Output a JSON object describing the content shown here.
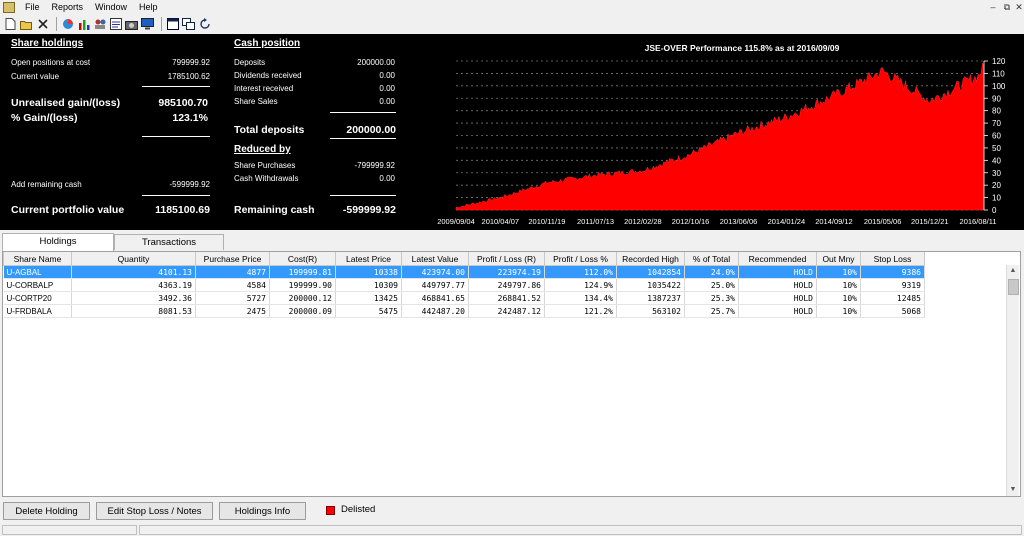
{
  "menu": {
    "items": [
      "File",
      "Reports",
      "Window",
      "Help"
    ]
  },
  "window_controls": {
    "minimize": "–",
    "restore": "⧉",
    "close": "✕"
  },
  "toolbar": {
    "icons": [
      "new-icon",
      "open-icon",
      "close-icon",
      "pie-chart-icon",
      "bar-chart-icon",
      "people-icon",
      "report-icon",
      "camera-icon",
      "monitor-icon",
      "window-icon",
      "cascade-icon",
      "refresh-icon"
    ]
  },
  "share_holdings": {
    "heading": "Share holdings",
    "open_positions_label": "Open positions at cost",
    "open_positions_value": "799999.92",
    "current_value_label": "Current value",
    "current_value_value": "1785100.62",
    "unrealised_label": "Unrealised gain/(loss)",
    "unrealised_value": "985100.70",
    "gain_label": "% Gain/(loss)",
    "gain_value": "123.1%",
    "add_cash_label": "Add remaining cash",
    "add_cash_value": "-599999.92",
    "portfolio_label": "Current portfolio value",
    "portfolio_value": "1185100.69"
  },
  "cash_position": {
    "heading": "Cash position",
    "deposits_label": "Deposits",
    "deposits_value": "200000.00",
    "dividends_label": "Dividends received",
    "dividends_value": "0.00",
    "interest_label": "Interest received",
    "interest_value": "0.00",
    "share_sales_label": "Share Sales",
    "share_sales_value": "0.00",
    "total_deposits_label": "Total deposits",
    "total_deposits_value": "200000.00",
    "reduced_heading": "Reduced by",
    "share_purchases_label": "Share Purchases",
    "share_purchases_value": "-799999.92",
    "cash_withdrawals_label": "Cash Withdrawals",
    "cash_withdrawals_value": "0.00",
    "remaining_cash_label": "Remaining cash",
    "remaining_cash_value": "-599999.92"
  },
  "chart_data": {
    "type": "area",
    "title": "JSE-OVER Performance 115.8% as at 2016/09/09",
    "x_ticks": [
      "2009/09/04",
      "2010/04/07",
      "2010/11/19",
      "2011/07/13",
      "2012/02/28",
      "2012/10/16",
      "2013/06/06",
      "2014/01/24",
      "2014/09/12",
      "2015/05/06",
      "2015/12/21",
      "2016/08/11"
    ],
    "y_ticks": [
      0,
      10,
      20,
      30,
      40,
      50,
      60,
      70,
      80,
      90,
      100,
      110,
      120
    ],
    "ylim": [
      0,
      120
    ],
    "grid": true,
    "x": [
      "2009/09/04",
      "2010/04/07",
      "2010/11/19",
      "2011/07/13",
      "2012/02/28",
      "2012/10/16",
      "2013/06/06",
      "2014/01/24",
      "2014/09/12",
      "2015/05/06",
      "2015/12/21",
      "2016/08/11",
      "2016/09/09"
    ],
    "y": [
      2,
      10,
      22,
      28,
      32,
      45,
      62,
      75,
      92,
      112,
      88,
      108,
      116
    ],
    "fill_color": "#ff0000",
    "background": "#000000"
  },
  "tabs": {
    "holdings": "Holdings",
    "transactions": "Transactions"
  },
  "table": {
    "columns": [
      "Share Name",
      "Quantity",
      "Purchase Price",
      "Cost(R)",
      "Latest Price",
      "Latest Value",
      "Profit / Loss (R)",
      "Profit / Loss %",
      "Recorded High",
      "% of Total",
      "Recommended",
      "Out Mny",
      "Stop Loss"
    ],
    "rows": [
      [
        "U-AGBAL",
        "4101.13",
        "4877",
        "199999.81",
        "10338",
        "423974.00",
        "223974.19",
        "112.0%",
        "1042854",
        "24.0%",
        "HOLD",
        "10%",
        "9386"
      ],
      [
        "U-CORBALP",
        "4363.19",
        "4584",
        "199999.90",
        "10309",
        "449797.77",
        "249797.86",
        "124.9%",
        "1035422",
        "25.0%",
        "HOLD",
        "10%",
        "9319"
      ],
      [
        "U-CORTP20",
        "3492.36",
        "5727",
        "200000.12",
        "13425",
        "468841.65",
        "268841.52",
        "134.4%",
        "1387237",
        "25.3%",
        "HOLD",
        "10%",
        "12485"
      ],
      [
        "U-FRDBALA",
        "8081.53",
        "2475",
        "200000.09",
        "5475",
        "442487.20",
        "242487.12",
        "121.2%",
        "563102",
        "25.7%",
        "HOLD",
        "10%",
        "5068"
      ]
    ],
    "selected_row": 0
  },
  "buttons": {
    "delete": "Delete Holding",
    "edit": "Edit Stop Loss / Notes",
    "info": "Holdings Info"
  },
  "legend": {
    "delisted": "Delisted",
    "delisted_color": "#ff0000"
  }
}
